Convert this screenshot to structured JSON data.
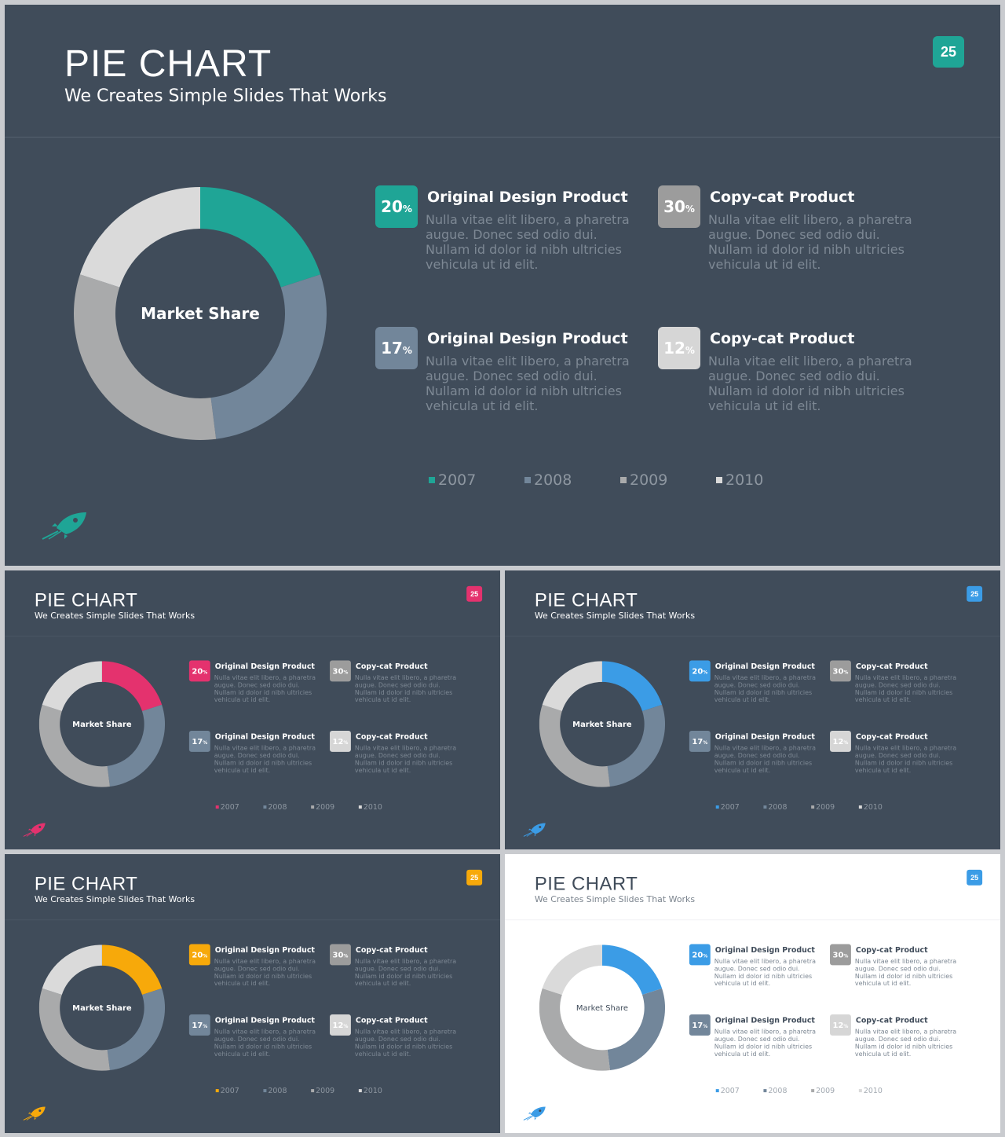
{
  "colors": {
    "slide_dark": "#404c5a",
    "slide_light": "#ffffff",
    "segment_mid": "#72869a",
    "segment_gray": "#a9aaab",
    "segment_light": "#dadada",
    "badge_30": "#9c9c9c",
    "badge_12": "#d6d6d6"
  },
  "slides": [
    {
      "theme": "dark",
      "accent": "#1fa596",
      "number": "25",
      "title": "PIE CHART",
      "subtitle": "We Creates Simple Slides That Works",
      "center_label": "Market Share",
      "logo_icon": "rocket-icon"
    },
    {
      "theme": "dark",
      "accent": "#e4326e",
      "number": "25",
      "title": "PIE CHART",
      "subtitle": "We Creates Simple Slides That Works",
      "center_label": "Market Share",
      "logo_icon": "rocket-icon"
    },
    {
      "theme": "dark",
      "accent": "#3b9ce6",
      "number": "25",
      "title": "PIE CHART",
      "subtitle": "We Creates Simple Slides That Works",
      "center_label": "Market Share",
      "logo_icon": "rocket-icon"
    },
    {
      "theme": "dark",
      "accent": "#f7a90a",
      "number": "25",
      "title": "PIE CHART",
      "subtitle": "We Creates Simple Slides That Works",
      "center_label": "Market Share",
      "logo_icon": "rocket-icon"
    },
    {
      "theme": "light",
      "accent": "#3b9ce6",
      "number": "25",
      "title": "PIE CHART",
      "subtitle": "We Creates Simple Slides That Works",
      "center_label": "Market Share",
      "logo_icon": "rocket-icon"
    }
  ],
  "items": [
    {
      "value": "20",
      "unit": "%",
      "title": "Original Design Product",
      "desc": "Nulla vitae elit libero, a pharetra augue. Donec sed odio dui. Nullam id dolor id nibh ultricies vehicula ut id elit.",
      "color": "accent"
    },
    {
      "value": "30",
      "unit": "%",
      "title": "Copy-cat Product",
      "desc": "Nulla vitae elit libero, a pharetra augue. Donec sed odio dui. Nullam id dolor id nibh ultricies vehicula ut id elit.",
      "color": "#9c9c9c"
    },
    {
      "value": "17",
      "unit": "%",
      "title": "Original Design Product",
      "desc": "Nulla vitae elit libero, a pharetra augue. Donec sed odio dui. Nullam id dolor id nibh ultricies vehicula ut id elit.",
      "color": "#72869a"
    },
    {
      "value": "12",
      "unit": "%",
      "title": "Copy-cat Product",
      "desc": "Nulla vitae elit libero, a pharetra augue. Donec sed odio dui. Nullam id dolor id nibh ultricies vehicula ut id elit.",
      "color": "#d6d6d6"
    }
  ],
  "chart_data": {
    "type": "pie",
    "center_label": "Market Share",
    "categories": [
      "2007",
      "2008",
      "2009",
      "2010"
    ],
    "values": [
      20,
      28,
      32,
      20
    ],
    "colors": [
      "accent",
      "#72869a",
      "#a9aaab",
      "#dadada"
    ]
  }
}
